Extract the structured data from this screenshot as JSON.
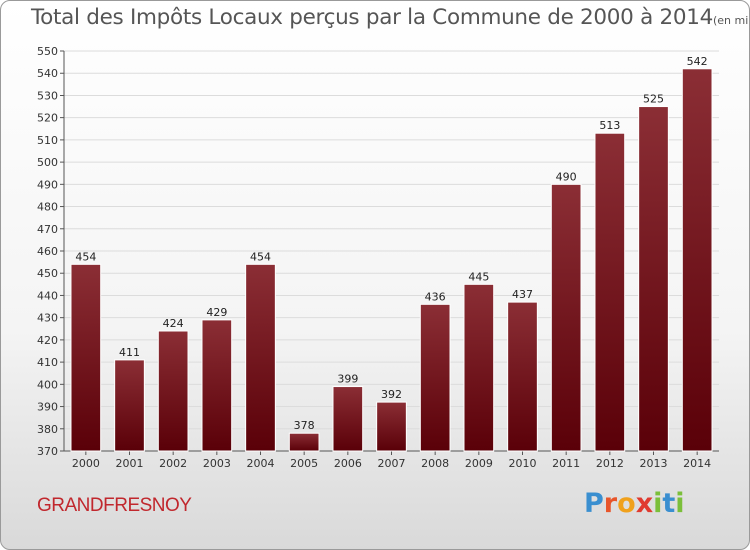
{
  "chart_data": {
    "type": "bar",
    "title": "Total des Impôts Locaux perçus par la Commune de 2000 à 2014",
    "unit_label": "(en milliers d'€)",
    "categories": [
      "2000",
      "2001",
      "2002",
      "2003",
      "2004",
      "2005",
      "2006",
      "2007",
      "2008",
      "2009",
      "2010",
      "2011",
      "2012",
      "2013",
      "2014"
    ],
    "values": [
      454,
      411,
      424,
      429,
      454,
      378,
      399,
      392,
      436,
      445,
      437,
      490,
      513,
      525,
      542
    ],
    "ylim": [
      370,
      550
    ],
    "yticks": [
      370,
      380,
      390,
      400,
      410,
      420,
      430,
      440,
      450,
      460,
      470,
      480,
      490,
      500,
      510,
      520,
      530,
      540,
      550
    ],
    "xlabel": "",
    "ylabel": "",
    "grid": true,
    "bar_color_top": "#8b2e35",
    "bar_color_bottom": "#5a0008"
  },
  "footer": {
    "commune": "GRANDFRESNOY",
    "commune_color": "#c1272d",
    "brand": "Proxiti",
    "brand_letters": [
      {
        "ch": "P",
        "color": "#3a8fd0"
      },
      {
        "ch": "r",
        "color": "#e8552a"
      },
      {
        "ch": "o",
        "color": "#f0a11c"
      },
      {
        "ch": "x",
        "color": "#e03a2f"
      },
      {
        "ch": "i",
        "color": "#7bbf3a"
      },
      {
        "ch": "t",
        "color": "#3a8fd0"
      },
      {
        "ch": "i",
        "color": "#7bbf3a"
      }
    ]
  }
}
